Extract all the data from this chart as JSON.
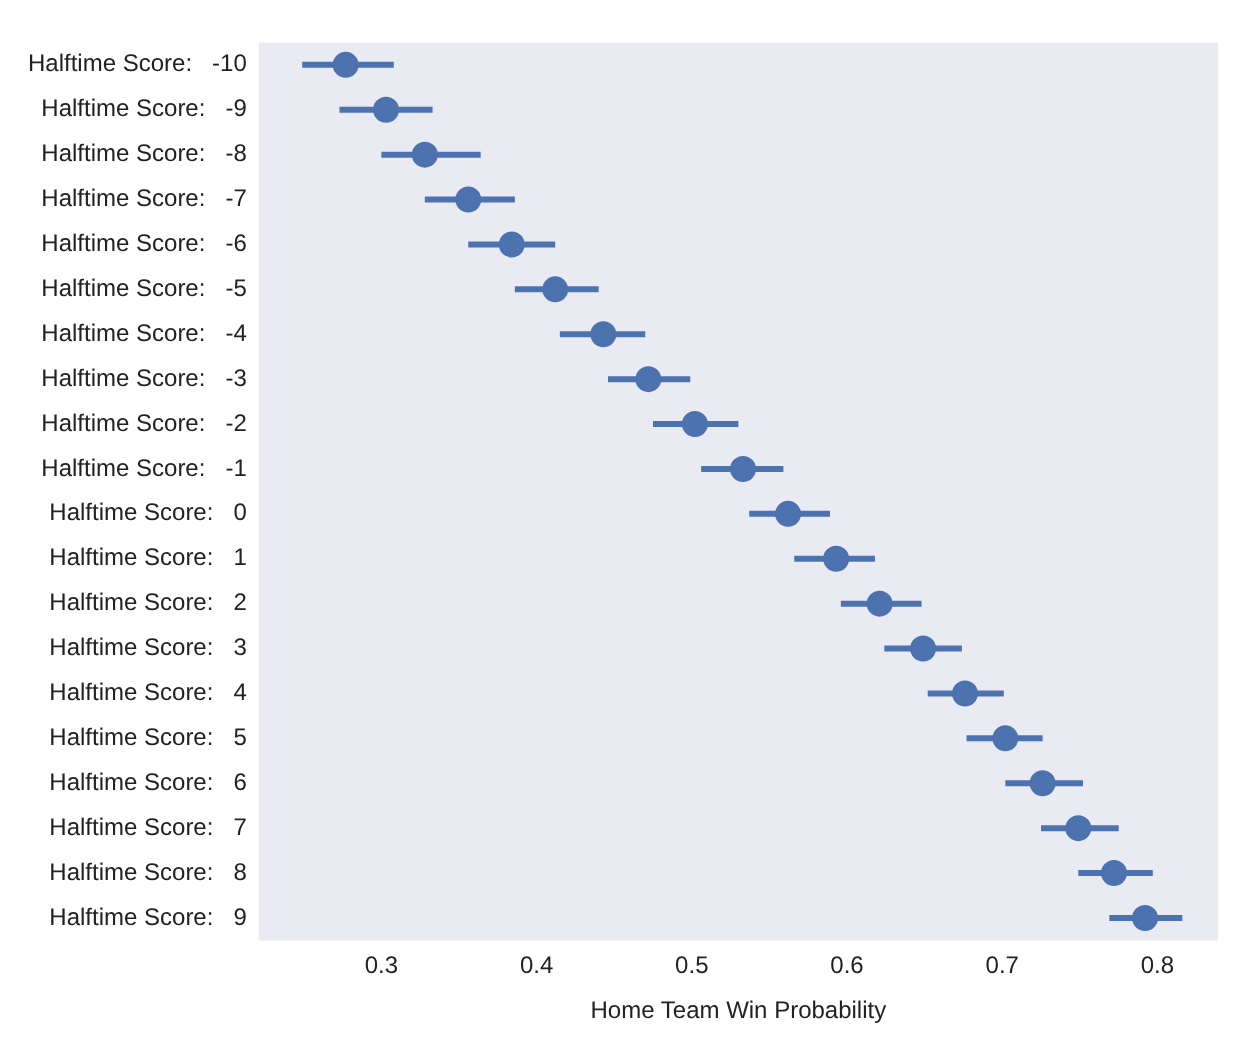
{
  "chart_data": {
    "type": "scatter",
    "orientation": "horizontal",
    "xlabel": "Home Team Win Probability",
    "categories": [
      "Halftime Score:   -10",
      "Halftime Score:   -9",
      "Halftime Score:   -8",
      "Halftime Score:   -7",
      "Halftime Score:   -6",
      "Halftime Score:   -5",
      "Halftime Score:   -4",
      "Halftime Score:   -3",
      "Halftime Score:   -2",
      "Halftime Score:   -1",
      "Halftime Score:   0",
      "Halftime Score:   1",
      "Halftime Score:   2",
      "Halftime Score:   3",
      "Halftime Score:   4",
      "Halftime Score:   5",
      "Halftime Score:   6",
      "Halftime Score:   7",
      "Halftime Score:   8",
      "Halftime Score:   9"
    ],
    "values": [
      0.277,
      0.303,
      0.328,
      0.356,
      0.384,
      0.412,
      0.443,
      0.472,
      0.502,
      0.533,
      0.562,
      0.593,
      0.621,
      0.649,
      0.676,
      0.702,
      0.726,
      0.749,
      0.772,
      0.792
    ],
    "errors": [
      [
        0.249,
        0.308
      ],
      [
        0.273,
        0.333
      ],
      [
        0.3,
        0.364
      ],
      [
        0.328,
        0.386
      ],
      [
        0.356,
        0.412
      ],
      [
        0.386,
        0.44
      ],
      [
        0.415,
        0.47
      ],
      [
        0.446,
        0.499
      ],
      [
        0.475,
        0.53
      ],
      [
        0.506,
        0.559
      ],
      [
        0.537,
        0.589
      ],
      [
        0.566,
        0.618
      ],
      [
        0.596,
        0.648
      ],
      [
        0.624,
        0.674
      ],
      [
        0.652,
        0.701
      ],
      [
        0.677,
        0.726
      ],
      [
        0.702,
        0.752
      ],
      [
        0.725,
        0.775
      ],
      [
        0.749,
        0.797
      ],
      [
        0.769,
        0.816
      ]
    ],
    "color": "#4c72b0",
    "marker": "circle",
    "xlim": [
      0.221,
      0.839
    ],
    "xticks": [
      0.3,
      0.4,
      0.5,
      0.6,
      0.7,
      0.8
    ],
    "grid": false,
    "legend": false
  }
}
